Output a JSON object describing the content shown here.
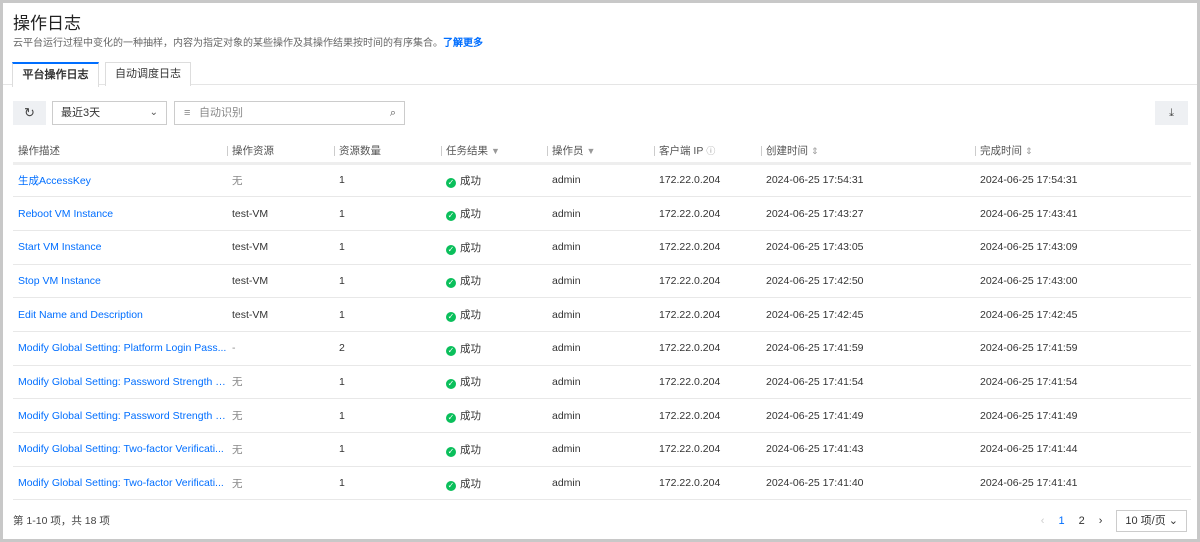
{
  "header": {
    "title": "操作日志",
    "description": "云平台运行过程中变化的一种抽样，内容为指定对象的某些操作及其操作结果按时间的有序集合。",
    "learn_more": "了解更多"
  },
  "tabs": [
    {
      "label": "平台操作日志",
      "active": true
    },
    {
      "label": "自动调度日志",
      "active": false
    }
  ],
  "toolbar": {
    "time_range": "最近3天",
    "search_placeholder": "自动识别"
  },
  "columns": [
    "操作描述",
    "操作资源",
    "资源数量",
    "任务结果",
    "操作员",
    "客户端 IP",
    "创建时间",
    "完成时间"
  ],
  "rows": [
    {
      "desc": "生成AccessKey",
      "resource": "无",
      "count": "1",
      "result": "成功",
      "operator": "admin",
      "ip": "172.22.0.204",
      "created": "2024-06-25 17:54:31",
      "finished": "2024-06-25 17:54:31"
    },
    {
      "desc": "Reboot VM Instance",
      "resource": "test-VM",
      "count": "1",
      "result": "成功",
      "operator": "admin",
      "ip": "172.22.0.204",
      "created": "2024-06-25 17:43:27",
      "finished": "2024-06-25 17:43:41"
    },
    {
      "desc": "Start VM Instance",
      "resource": "test-VM",
      "count": "1",
      "result": "成功",
      "operator": "admin",
      "ip": "172.22.0.204",
      "created": "2024-06-25 17:43:05",
      "finished": "2024-06-25 17:43:09"
    },
    {
      "desc": "Stop VM Instance",
      "resource": "test-VM",
      "count": "1",
      "result": "成功",
      "operator": "admin",
      "ip": "172.22.0.204",
      "created": "2024-06-25 17:42:50",
      "finished": "2024-06-25 17:43:00"
    },
    {
      "desc": "Edit Name and Description",
      "resource": "test-VM",
      "count": "1",
      "result": "成功",
      "operator": "admin",
      "ip": "172.22.0.204",
      "created": "2024-06-25 17:42:45",
      "finished": "2024-06-25 17:42:45"
    },
    {
      "desc": "Modify Global Setting: Platform Login Pass...",
      "resource": "-",
      "count": "2",
      "result": "成功",
      "operator": "admin",
      "ip": "172.22.0.204",
      "created": "2024-06-25 17:41:59",
      "finished": "2024-06-25 17:41:59"
    },
    {
      "desc": "Modify Global Setting: Password Strength P...",
      "resource": "无",
      "count": "1",
      "result": "成功",
      "operator": "admin",
      "ip": "172.22.0.204",
      "created": "2024-06-25 17:41:54",
      "finished": "2024-06-25 17:41:54"
    },
    {
      "desc": "Modify Global Setting: Password Strength P...",
      "resource": "无",
      "count": "1",
      "result": "成功",
      "operator": "admin",
      "ip": "172.22.0.204",
      "created": "2024-06-25 17:41:49",
      "finished": "2024-06-25 17:41:49"
    },
    {
      "desc": "Modify Global Setting: Two-factor Verificati...",
      "resource": "无",
      "count": "1",
      "result": "成功",
      "operator": "admin",
      "ip": "172.22.0.204",
      "created": "2024-06-25 17:41:43",
      "finished": "2024-06-25 17:41:44"
    },
    {
      "desc": "Modify Global Setting: Two-factor Verificati...",
      "resource": "无",
      "count": "1",
      "result": "成功",
      "operator": "admin",
      "ip": "172.22.0.204",
      "created": "2024-06-25 17:41:40",
      "finished": "2024-06-25 17:41:41"
    }
  ],
  "footer": {
    "summary": "第 1-10 项，共 18 项",
    "pages": [
      "1",
      "2"
    ],
    "current_page": "1",
    "page_size": "10 项/页"
  },
  "colors": {
    "accent": "#006eff",
    "success": "#0abf5b"
  }
}
